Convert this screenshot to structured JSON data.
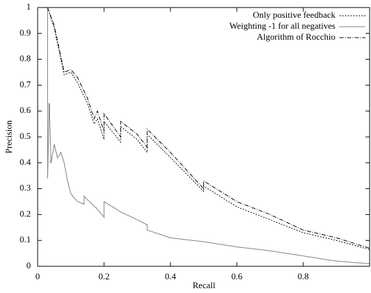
{
  "chart_data": {
    "type": "line",
    "xlabel": "Recall",
    "ylabel": "Precision",
    "xlim": [
      0,
      1
    ],
    "ylim": [
      0,
      1
    ],
    "xticks": [
      0,
      0.2,
      0.4,
      0.6,
      0.8
    ],
    "yticks": [
      0,
      0.1,
      0.2,
      0.3,
      0.4,
      0.5,
      0.6,
      0.7,
      0.8,
      0.9,
      1
    ],
    "legend": "top-right",
    "series": [
      {
        "name": "Only positive feedback",
        "color": "#000000",
        "dash": "2,2",
        "x": [
          0.03,
          0.05,
          0.07,
          0.08,
          0.1,
          0.12,
          0.15,
          0.17,
          0.18,
          0.2,
          0.2,
          0.25,
          0.25,
          0.3,
          0.33,
          0.33,
          0.4,
          0.5,
          0.5,
          0.6,
          0.7,
          0.8,
          0.9,
          1.0
        ],
        "values": [
          1.0,
          0.92,
          0.8,
          0.74,
          0.75,
          0.71,
          0.63,
          0.55,
          0.57,
          0.49,
          0.56,
          0.48,
          0.54,
          0.49,
          0.44,
          0.51,
          0.42,
          0.29,
          0.31,
          0.23,
          0.18,
          0.13,
          0.1,
          0.065
        ]
      },
      {
        "name": "Weighting -1 for all negatives",
        "color": "#000000",
        "dash": "1,1",
        "x": [
          0.03,
          0.03,
          0.035,
          0.04,
          0.05,
          0.06,
          0.07,
          0.08,
          0.09,
          0.1,
          0.12,
          0.14,
          0.14,
          0.18,
          0.2,
          0.2,
          0.25,
          0.3,
          0.33,
          0.33,
          0.4,
          0.5,
          0.6,
          0.7,
          0.8,
          0.9,
          1.0
        ],
        "values": [
          1.0,
          0.34,
          0.63,
          0.4,
          0.47,
          0.42,
          0.44,
          0.4,
          0.33,
          0.28,
          0.25,
          0.24,
          0.27,
          0.22,
          0.19,
          0.25,
          0.21,
          0.18,
          0.16,
          0.14,
          0.11,
          0.095,
          0.075,
          0.06,
          0.04,
          0.02,
          0.01
        ]
      },
      {
        "name": "Algorithm of Rocchio",
        "color": "#000000",
        "dash": "6,2,1,2",
        "x": [
          0.03,
          0.05,
          0.07,
          0.08,
          0.1,
          0.12,
          0.15,
          0.17,
          0.18,
          0.2,
          0.2,
          0.25,
          0.25,
          0.3,
          0.33,
          0.33,
          0.4,
          0.5,
          0.5,
          0.6,
          0.7,
          0.8,
          0.9,
          1.0
        ],
        "values": [
          1.0,
          0.93,
          0.81,
          0.75,
          0.76,
          0.73,
          0.65,
          0.57,
          0.6,
          0.52,
          0.59,
          0.5,
          0.56,
          0.51,
          0.46,
          0.53,
          0.44,
          0.3,
          0.33,
          0.25,
          0.2,
          0.14,
          0.11,
          0.07
        ]
      }
    ]
  }
}
